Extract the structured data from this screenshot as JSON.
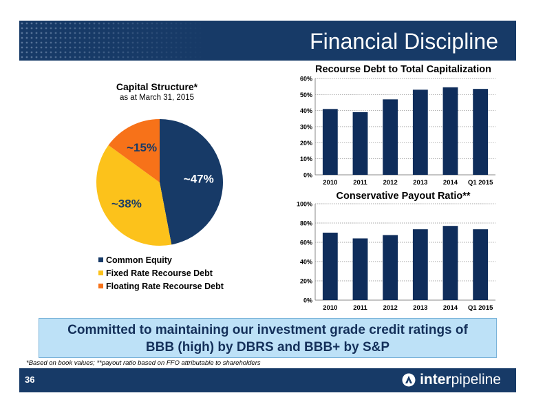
{
  "header": {
    "title": "Financial Discipline"
  },
  "pie_title": "Capital Structure*",
  "pie_subtitle": "as at March 31, 2015",
  "bar1_title": "Recourse Debt to Total Capitalization",
  "bar2_title": "Conservative Payout Ratio**",
  "callout": {
    "line1": "Committed to maintaining our investment grade credit ratings of",
    "line2": "BBB (high) by DBRS and BBB+ by S&P"
  },
  "footnote": "*Based on book values; **payout ratio based on FFO attributable to shareholders",
  "footer": {
    "page_number": "36",
    "logo_bold": "inter",
    "logo_regular": "pipeline"
  },
  "colors": {
    "navy": "#173a67",
    "bar": "#0f2d5b",
    "yellow": "#fcc21b",
    "orange": "#f77219",
    "callout_bg": "#bde1f7"
  },
  "chart_data": [
    {
      "type": "pie",
      "title": "Capital Structure*",
      "subtitle": "as at March 31, 2015",
      "slices": [
        {
          "name": "Common Equity",
          "value": 47,
          "label": "~47%",
          "color": "#173a67"
        },
        {
          "name": "Fixed Rate Recourse Debt",
          "value": 38,
          "label": "~38%",
          "color": "#fcc21b"
        },
        {
          "name": "Floating Rate Recourse Debt",
          "value": 15,
          "label": "~15%",
          "color": "#f77219"
        }
      ],
      "legend_placement": "bottom"
    },
    {
      "type": "bar",
      "title": "Recourse Debt to Total Capitalization",
      "categories": [
        "2010",
        "2011",
        "2012",
        "2013",
        "2014",
        "Q1 2015"
      ],
      "values": [
        41,
        39,
        47,
        53,
        54.5,
        53.5
      ],
      "ylim": [
        0,
        60
      ],
      "yticks": [
        "0%",
        "10%",
        "20%",
        "30%",
        "40%",
        "50%",
        "60%"
      ],
      "grid": true
    },
    {
      "type": "bar",
      "title": "Conservative Payout Ratio**",
      "categories": [
        "2010",
        "2011",
        "2012",
        "2013",
        "2014",
        "Q1 2015"
      ],
      "values": [
        70,
        64,
        67.5,
        73.5,
        77,
        73.5
      ],
      "ylim": [
        0,
        100
      ],
      "yticks": [
        "0%",
        "20%",
        "40%",
        "60%",
        "80%",
        "100%"
      ],
      "grid": true
    }
  ]
}
